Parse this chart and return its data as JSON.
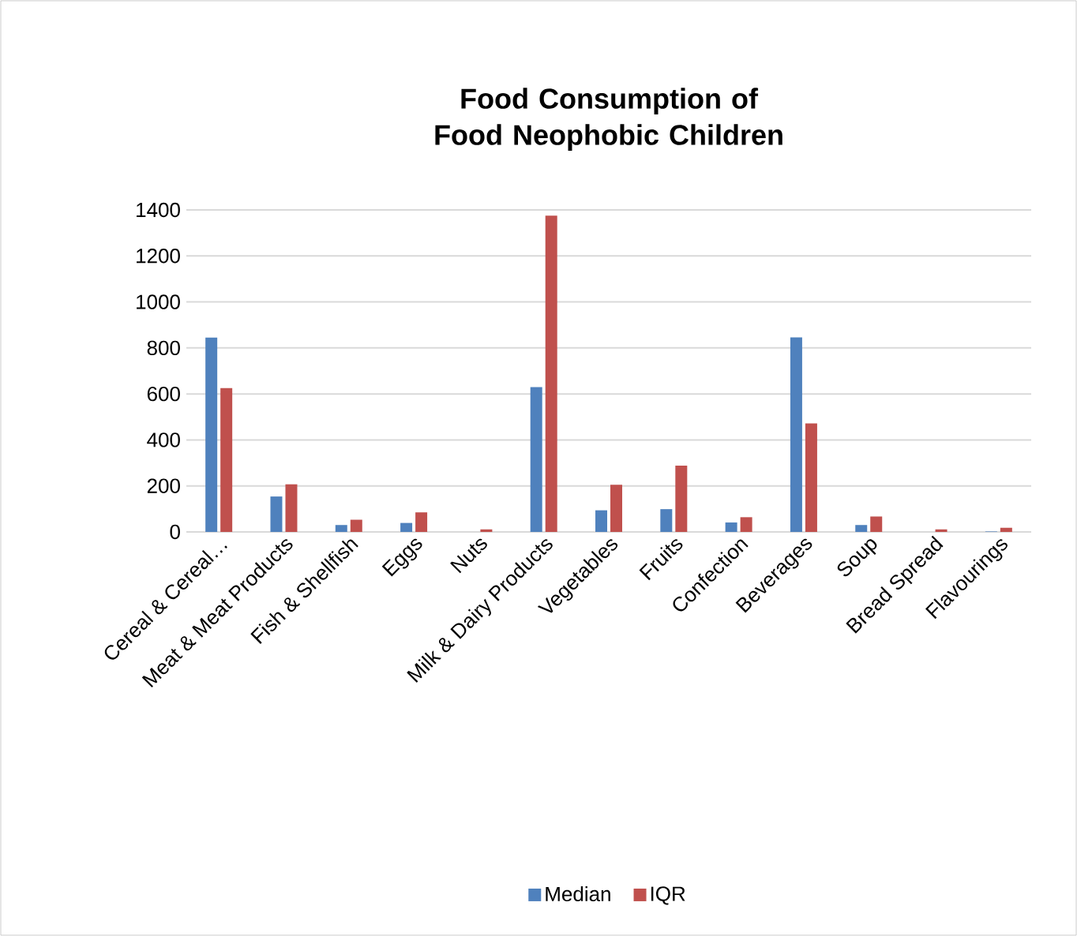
{
  "chart_data": {
    "type": "bar",
    "title": "Food Consumption of Food Neophobic Children",
    "categories": [
      "Cereal & Cereal…",
      "Meat & Meat Products",
      "Fish & Shellfish",
      "Eggs",
      "Nuts",
      "Milk & Dairy Products",
      "Vegetables",
      "Fruits",
      "Confection",
      "Beverages",
      "Soup",
      "Bread Spread",
      "Flavourings"
    ],
    "series": [
      {
        "name": "Median",
        "color": "#4f81bd",
        "values": [
          845,
          154,
          30,
          39,
          0,
          630,
          94,
          99,
          41,
          846,
          30,
          0,
          2
        ]
      },
      {
        "name": "IQR",
        "color": "#c0504d",
        "values": [
          625,
          207,
          53,
          85,
          11,
          1375,
          205,
          288,
          64,
          472,
          67,
          11,
          18
        ]
      }
    ],
    "ylim": [
      0,
      1400
    ],
    "yticks": [
      0,
      200,
      400,
      600,
      800,
      1000,
      1200,
      1400
    ],
    "grid": "y",
    "legend": "bottom"
  }
}
